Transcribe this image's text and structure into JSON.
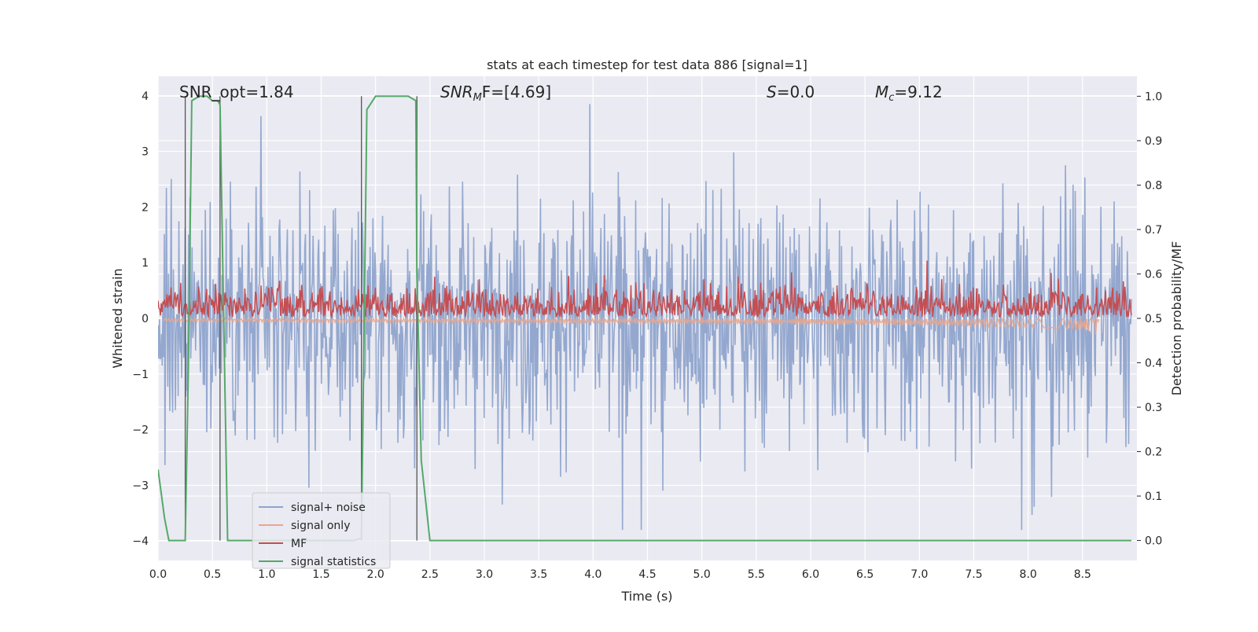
{
  "chart_data": {
    "type": "line",
    "title": "stats at each timestep for test data 886 [signal=1]",
    "xlabel": "Time (s)",
    "ylabel_left": "Whitened strain",
    "ylabel_right": "Detection probability/MF",
    "xlim": [
      0.0,
      9.0
    ],
    "ylim_left": [
      -4.35,
      4.35
    ],
    "ylim_right": [
      -0.045,
      1.045
    ],
    "x_ticks": [
      "0.0",
      "0.5",
      "1.0",
      "1.5",
      "2.0",
      "2.5",
      "3.0",
      "3.5",
      "4.0",
      "4.5",
      "5.0",
      "5.5",
      "6.0",
      "6.5",
      "7.0",
      "7.5",
      "8.0",
      "8.5"
    ],
    "y_ticks_left": [
      "−4",
      "−3",
      "−2",
      "−1",
      "0",
      "1",
      "2",
      "3",
      "4"
    ],
    "y_ticks_right": [
      "0.0",
      "0.1",
      "0.2",
      "0.3",
      "0.4",
      "0.5",
      "0.6",
      "0.7",
      "0.8",
      "0.9",
      "1.0"
    ],
    "grid": true,
    "legend_position": "lower-left",
    "annotations": {
      "snr_opt": "SNR_opt=1.84",
      "snr_mf_prefix": "SNR",
      "snr_mf_sub": "M",
      "snr_mf_suffix": "F=[4.69]",
      "s_label": "S",
      "s_value": "=0.0",
      "mc_label": "M",
      "mc_sub": "c",
      "mc_value": "=9.12"
    },
    "vertical_markers_s": [
      0.25,
      0.57,
      1.87,
      2.38
    ],
    "series": [
      {
        "name": "signal+ noise",
        "color": "#8fa4cc",
        "description_values": "whitened strain noise, amplitude mostly within ±2.5, peaks near 3.8"
      },
      {
        "name": "signal only",
        "color": "#e8a68e",
        "chirp_end_s": 8.65,
        "chirp_end_value": -0.2
      },
      {
        "name": "MF",
        "color": "#c44e52",
        "baseline": 0.5,
        "typical_peak": 0.6,
        "max_value": 0.63,
        "max_at_s": 7.07
      },
      {
        "name": "signal statistics",
        "color": "#55a868",
        "x": [
          0.0,
          0.06,
          0.1,
          0.18,
          0.24,
          0.25,
          0.28,
          0.31,
          0.38,
          0.45,
          0.5,
          0.55,
          0.57,
          0.6,
          0.64,
          0.7,
          1.0,
          1.5,
          1.8,
          1.87,
          1.92,
          2.0,
          2.3,
          2.37,
          2.38,
          2.42,
          2.5,
          3.0,
          5.0,
          7.0,
          8.95
        ],
        "values": [
          0.16,
          0.05,
          0.0,
          0.0,
          0.0,
          0.0,
          0.4,
          0.99,
          1.0,
          1.0,
          0.99,
          0.99,
          0.98,
          0.55,
          0.0,
          0.0,
          0.0,
          0.0,
          0.0,
          0.005,
          0.97,
          1.0,
          1.0,
          0.99,
          0.6,
          0.18,
          0.0,
          0.0,
          0.0,
          0.0,
          0.0
        ]
      }
    ]
  },
  "legend": {
    "items": [
      {
        "label": "signal+ noise",
        "color": "#8fa4cc"
      },
      {
        "label": "signal only",
        "color": "#e8a68e"
      },
      {
        "label": "MF",
        "color": "#c44e52"
      },
      {
        "label": "signal statistics",
        "color": "#55a868"
      }
    ]
  }
}
